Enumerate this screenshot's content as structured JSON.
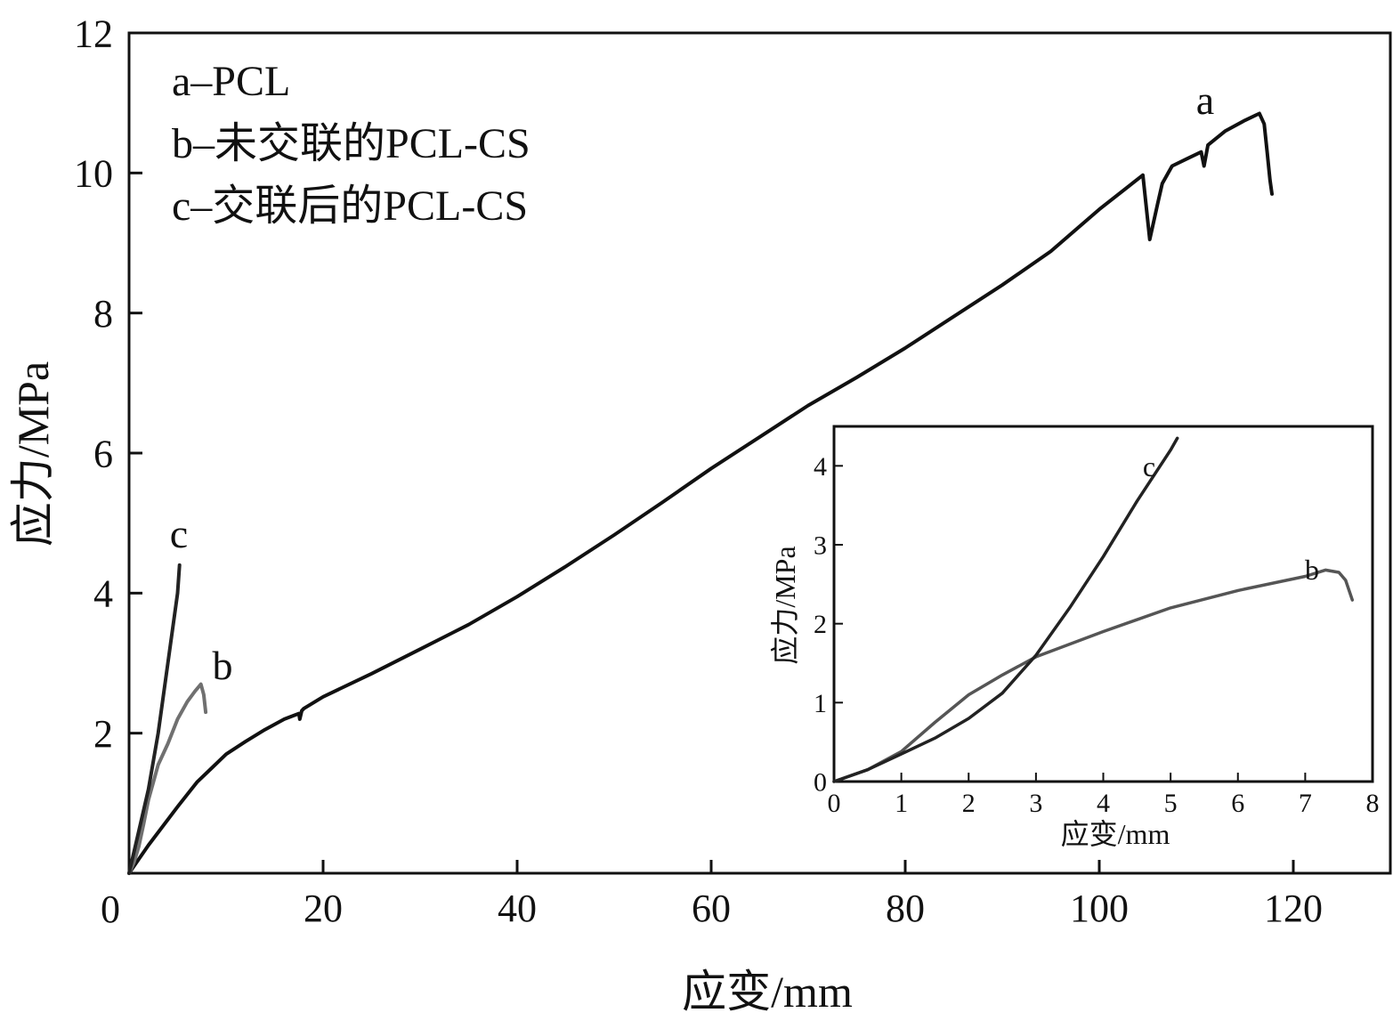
{
  "chart_data": [
    {
      "type": "line",
      "xlabel": "应变/mm",
      "ylabel": "应力/MPa",
      "xlim": [
        0,
        130
      ],
      "ylim": [
        0,
        12
      ],
      "x_ticks": [
        "0",
        "20",
        "40",
        "60",
        "80",
        "100",
        "120"
      ],
      "y_ticks": [
        "2",
        "4",
        "6",
        "8",
        "10",
        "12"
      ],
      "legend_text": [
        "a–PCL",
        "b–未交联的PCL-CS",
        "c–交联后的PCL-CS"
      ],
      "series": [
        {
          "name": "a",
          "color": "#111111",
          "points": [
            [
              0,
              0
            ],
            [
              2,
              0.4
            ],
            [
              5,
              0.95
            ],
            [
              7,
              1.3
            ],
            [
              8.5,
              1.5
            ],
            [
              10,
              1.7
            ],
            [
              12,
              1.88
            ],
            [
              14,
              2.05
            ],
            [
              16,
              2.2
            ],
            [
              17.5,
              2.28
            ],
            [
              17.6,
              2.2
            ],
            [
              17.8,
              2.32
            ],
            [
              18,
              2.35
            ],
            [
              20,
              2.52
            ],
            [
              25,
              2.85
            ],
            [
              30,
              3.2
            ],
            [
              35,
              3.55
            ],
            [
              40,
              3.95
            ],
            [
              45,
              4.38
            ],
            [
              50,
              4.83
            ],
            [
              55,
              5.3
            ],
            [
              60,
              5.78
            ],
            [
              65,
              6.23
            ],
            [
              70,
              6.68
            ],
            [
              75,
              7.08
            ],
            [
              80,
              7.5
            ],
            [
              85,
              7.95
            ],
            [
              90,
              8.4
            ],
            [
              95,
              8.88
            ],
            [
              100,
              9.48
            ],
            [
              104.5,
              9.97
            ],
            [
              105.2,
              9.05
            ],
            [
              106,
              9.55
            ],
            [
              106.5,
              9.85
            ],
            [
              107.5,
              10.1
            ],
            [
              109,
              10.2
            ],
            [
              110.5,
              10.3
            ],
            [
              110.8,
              10.1
            ],
            [
              111.2,
              10.4
            ],
            [
              113,
              10.6
            ],
            [
              115,
              10.75
            ],
            [
              116.5,
              10.85
            ],
            [
              117,
              10.7
            ],
            [
              117.3,
              10.3
            ],
            [
              117.6,
              9.9
            ],
            [
              117.8,
              9.7
            ]
          ]
        },
        {
          "name": "b",
          "color": "#707070",
          "points": [
            [
              0,
              0
            ],
            [
              0.5,
              0.15
            ],
            [
              1,
              0.38
            ],
            [
              1.5,
              0.7
            ],
            [
              2,
              1.05
            ],
            [
              2.5,
              1.3
            ],
            [
              3,
              1.55
            ],
            [
              4,
              1.85
            ],
            [
              5,
              2.2
            ],
            [
              6,
              2.45
            ],
            [
              6.8,
              2.6
            ],
            [
              7.4,
              2.7
            ],
            [
              7.7,
              2.55
            ],
            [
              7.9,
              2.3
            ]
          ]
        },
        {
          "name": "c",
          "color": "#222222",
          "points": [
            [
              0,
              0
            ],
            [
              1,
              0.6
            ],
            [
              2,
              1.2
            ],
            [
              3,
              2.0
            ],
            [
              4,
              3.0
            ],
            [
              5,
              4.0
            ],
            [
              5.2,
              4.4
            ]
          ]
        }
      ],
      "annotations": [
        "a",
        "b",
        "c"
      ]
    },
    {
      "type": "line",
      "xlabel": "应变/mm",
      "ylabel": "应力/MPa",
      "xlim": [
        0,
        8
      ],
      "ylim": [
        0,
        4.5
      ],
      "x_ticks": [
        "0",
        "1",
        "2",
        "3",
        "4",
        "5",
        "6",
        "7",
        "8"
      ],
      "y_ticks": [
        "0",
        "1",
        "2",
        "3",
        "4"
      ],
      "series": [
        {
          "name": "b",
          "color": "#555555",
          "points": [
            [
              0,
              0
            ],
            [
              0.5,
              0.15
            ],
            [
              1,
              0.38
            ],
            [
              1.5,
              0.75
            ],
            [
              2,
              1.1
            ],
            [
              2.5,
              1.35
            ],
            [
              3,
              1.58
            ],
            [
              4,
              1.9
            ],
            [
              5,
              2.2
            ],
            [
              6,
              2.42
            ],
            [
              7,
              2.6
            ],
            [
              7.3,
              2.68
            ],
            [
              7.5,
              2.65
            ],
            [
              7.6,
              2.55
            ],
            [
              7.7,
              2.3
            ]
          ]
        },
        {
          "name": "c",
          "color": "#222222",
          "points": [
            [
              0,
              0
            ],
            [
              0.5,
              0.15
            ],
            [
              1,
              0.35
            ],
            [
              1.5,
              0.55
            ],
            [
              2,
              0.8
            ],
            [
              2.5,
              1.12
            ],
            [
              3,
              1.6
            ],
            [
              3.5,
              2.2
            ],
            [
              4,
              2.85
            ],
            [
              4.5,
              3.55
            ],
            [
              5,
              4.2
            ],
            [
              5.1,
              4.35
            ]
          ]
        }
      ],
      "annotations": [
        "b",
        "c"
      ]
    }
  ]
}
